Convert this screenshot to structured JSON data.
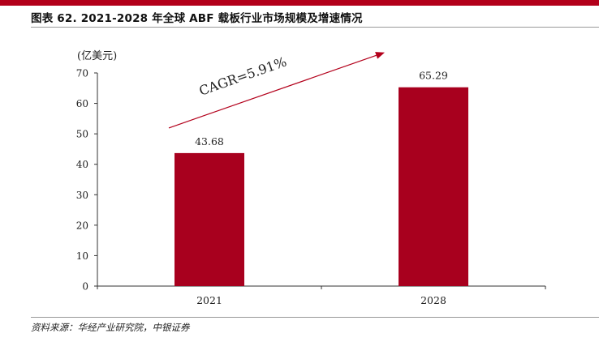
{
  "header": {
    "title": "图表 62. 2021-2028 年全球 ABF 载板行业市场规模及增速情况"
  },
  "footer": {
    "source": "资料来源：华经产业研究院，中银证券"
  },
  "colors": {
    "accent": "#b3001b",
    "bar": "#a8001e",
    "arrow": "#b3001b"
  },
  "chart_data": {
    "type": "bar",
    "categories": [
      "2021",
      "2028"
    ],
    "values": [
      43.68,
      65.29
    ],
    "data_labels": [
      "43.68",
      "65.29"
    ],
    "title": "",
    "xlabel": "",
    "ylabel": "(亿美元)",
    "ylim": [
      0,
      70
    ],
    "yticks": [
      0,
      10,
      20,
      30,
      40,
      50,
      60,
      70
    ],
    "grid": false,
    "legend": "none",
    "annotation": "CAGR=5.91%"
  }
}
